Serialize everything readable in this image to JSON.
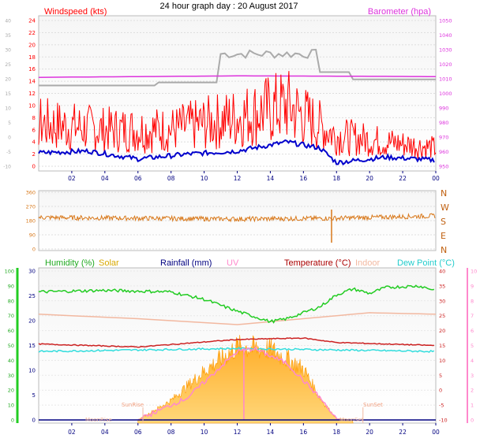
{
  "title": "24 hour graph day : 20 August 2017",
  "colors": {
    "wind": "#ff0000",
    "gust": "#ff0000",
    "avgwind": "#0000cc",
    "baro": "#dd33dd",
    "grey": "#aaaaaa",
    "dir": "#d8781a",
    "humidity": "#22cc22",
    "solar": "#ffb833",
    "rain": "#000080",
    "uv": "#ff88cc",
    "temp": "#cc2222",
    "indoor": "#f2b8a0",
    "dew": "#33dddd",
    "moon": "#f2b8a0"
  },
  "labels": {
    "windspeed": "Windspeed (kts)",
    "barometer": "Barometer (hpa)",
    "humidity": "Humidity (%)",
    "solar": "Solar",
    "rainfall": "Rainfall (mm)",
    "uv": "UV",
    "temperature": "Temperature (°C)",
    "indoor": "Indoor",
    "dewpoint": "Dew Point (°C)",
    "sunrise": "SunRise",
    "sunset": "SunSet",
    "moonrise": "MoonRise",
    "moonset": "MoonSet"
  },
  "chart_data": [
    {
      "type": "line",
      "title": "24 hour graph day : 20 August 2017",
      "x_ticks": [
        "02",
        "04",
        "06",
        "08",
        "10",
        "12",
        "14",
        "16",
        "18",
        "20",
        "22",
        "00"
      ],
      "left_axis": {
        "label": "Windspeed (kts)",
        "ticks": [
          24,
          22,
          20,
          18,
          16,
          14,
          12,
          10,
          8,
          6,
          4,
          2,
          0
        ],
        "ylim": [
          0,
          24
        ]
      },
      "outer_left_axis": {
        "ticks": [
          40,
          35,
          30,
          25,
          20,
          15,
          10,
          5,
          0,
          -5,
          -10
        ],
        "ylim": [
          -10,
          40
        ]
      },
      "right_axis": {
        "label": "Barometer (hpa)",
        "ticks": [
          1050,
          1040,
          1030,
          1020,
          1010,
          1000,
          990,
          980,
          970,
          960,
          950
        ],
        "ylim": [
          950,
          1050
        ]
      },
      "series": [
        {
          "name": "Barometer (hpa)",
          "description": "approx flat",
          "points": [
            [
              0,
              1011
            ],
            [
              6,
              1011.5
            ],
            [
              12,
              1012
            ],
            [
              18,
              1011.8
            ],
            [
              24,
              1011.5
            ]
          ]
        },
        {
          "name": "gust",
          "points": [
            [
              0,
              14
            ],
            [
              6,
              13
            ],
            [
              12,
              15
            ],
            [
              15,
              17
            ],
            [
              18,
              10
            ],
            [
              24,
              8
            ]
          ]
        },
        {
          "name": "wind",
          "points": [
            [
              0,
              7
            ],
            [
              4,
              6
            ],
            [
              8,
              6
            ],
            [
              12,
              8
            ],
            [
              15,
              10
            ],
            [
              18,
              5
            ],
            [
              21,
              4
            ],
            [
              24,
              3
            ]
          ]
        },
        {
          "name": "avgwind",
          "points": [
            [
              0,
              2.2
            ],
            [
              3,
              2.5
            ],
            [
              6,
              1.2
            ],
            [
              9,
              2
            ],
            [
              12,
              2.5
            ],
            [
              15,
              4
            ],
            [
              17,
              3
            ],
            [
              18,
              0.6
            ],
            [
              21,
              1.5
            ],
            [
              24,
              1
            ]
          ]
        }
      ]
    },
    {
      "type": "line",
      "name": "wind direction",
      "left_axis": {
        "ticks": [
          360,
          270,
          180,
          90,
          0
        ],
        "ylim": [
          0,
          360
        ]
      },
      "right_axis": {
        "ticks": [
          "N",
          "W",
          "S",
          "E",
          "N"
        ]
      },
      "series": [
        {
          "name": "direction",
          "points": [
            [
              0,
              200
            ],
            [
              6,
              195
            ],
            [
              12,
              190
            ],
            [
              18,
              195
            ],
            [
              24,
              210
            ]
          ]
        }
      ]
    },
    {
      "type": "area",
      "name": "combined",
      "x_ticks": [
        "02",
        "04",
        "06",
        "08",
        "10",
        "12",
        "14",
        "16",
        "18",
        "20",
        "22",
        "00"
      ],
      "humidity_axis": {
        "ticks": [
          100,
          90,
          80,
          70,
          60,
          50,
          40,
          30,
          20,
          10,
          0
        ],
        "ylim": [
          0,
          100
        ]
      },
      "rain_axis": {
        "ticks": [
          30,
          25,
          20,
          15,
          10,
          5,
          0
        ],
        "ylim": [
          0,
          30
        ]
      },
      "temp_axis": {
        "ticks": [
          40,
          35,
          30,
          25,
          20,
          15,
          10,
          5,
          0,
          -5,
          -10
        ],
        "ylim": [
          -10,
          40
        ]
      },
      "uv_axis": {
        "ticks": [
          10,
          9,
          8,
          7,
          6,
          5,
          4,
          3,
          2,
          1,
          0
        ],
        "ylim": [
          0,
          10
        ]
      },
      "series": [
        {
          "name": "Humidity (%)",
          "points": [
            [
              0,
              86
            ],
            [
              4,
              87
            ],
            [
              8,
              86
            ],
            [
              10,
              81
            ],
            [
              12,
              73
            ],
            [
              14,
              66
            ],
            [
              15,
              68
            ],
            [
              17,
              76
            ],
            [
              18,
              84
            ],
            [
              19,
              88
            ],
            [
              20,
              85
            ],
            [
              21,
              89
            ],
            [
              23,
              90
            ],
            [
              24,
              87
            ]
          ]
        },
        {
          "name": "Indoor",
          "points": [
            [
              0,
              71
            ],
            [
              6,
              68
            ],
            [
              12,
              64
            ],
            [
              16,
              68
            ],
            [
              20,
              72
            ],
            [
              24,
              71
            ]
          ]
        },
        {
          "name": "Temperature (°C)",
          "points": [
            [
              0,
              15.5
            ],
            [
              6,
              14.5
            ],
            [
              12,
              17
            ],
            [
              16,
              17.5
            ],
            [
              18,
              16
            ],
            [
              24,
              15
            ]
          ]
        },
        {
          "name": "Dew Point (°C)",
          "points": [
            [
              0,
              13
            ],
            [
              12,
              14
            ],
            [
              18,
              13.5
            ],
            [
              24,
              13
            ]
          ]
        },
        {
          "name": "Solar",
          "points": [
            [
              6,
              0
            ],
            [
              8,
              80
            ],
            [
              10,
              200
            ],
            [
              12,
              300
            ],
            [
              14,
              290
            ],
            [
              16,
              210
            ],
            [
              17,
              90
            ],
            [
              18,
              5
            ],
            [
              19,
              0
            ]
          ]
        },
        {
          "name": "UV",
          "points": [
            [
              6,
              0
            ],
            [
              9,
              1.5
            ],
            [
              12,
              4.6
            ],
            [
              13,
              4.8
            ],
            [
              15,
              3.8
            ],
            [
              17,
              1.5
            ],
            [
              18,
              0
            ]
          ]
        },
        {
          "name": "Rainfall (mm)",
          "points": [
            [
              0,
              0
            ],
            [
              24,
              0
            ]
          ]
        }
      ]
    }
  ]
}
